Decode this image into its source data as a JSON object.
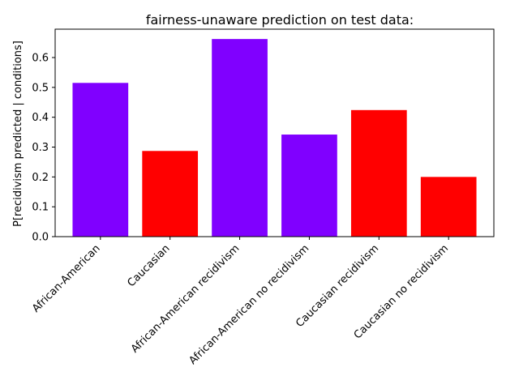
{
  "chart_data": {
    "type": "bar",
    "title": "fairness-unaware prediction on test data:",
    "xlabel": "",
    "ylabel": "P[recidivism predicted | conditions]",
    "categories": [
      "African-American",
      "Caucasian",
      "African-American recidivism",
      "African-American no recidivism",
      "Caucasian recidivism",
      "Caucasian no recidivism"
    ],
    "values": [
      0.515,
      0.287,
      0.662,
      0.342,
      0.424,
      0.2
    ],
    "bar_colors": [
      "#8000ff",
      "#ff0000",
      "#8000ff",
      "#8000ff",
      "#ff0000",
      "#ff0000"
    ],
    "ylim": [
      0,
      0.695
    ],
    "yticks": [
      0.0,
      0.1,
      0.2,
      0.3,
      0.4,
      0.5,
      0.6
    ],
    "ytick_labels": [
      "0.0",
      "0.1",
      "0.2",
      "0.3",
      "0.4",
      "0.5",
      "0.6"
    ],
    "grid": false,
    "legend": false
  }
}
